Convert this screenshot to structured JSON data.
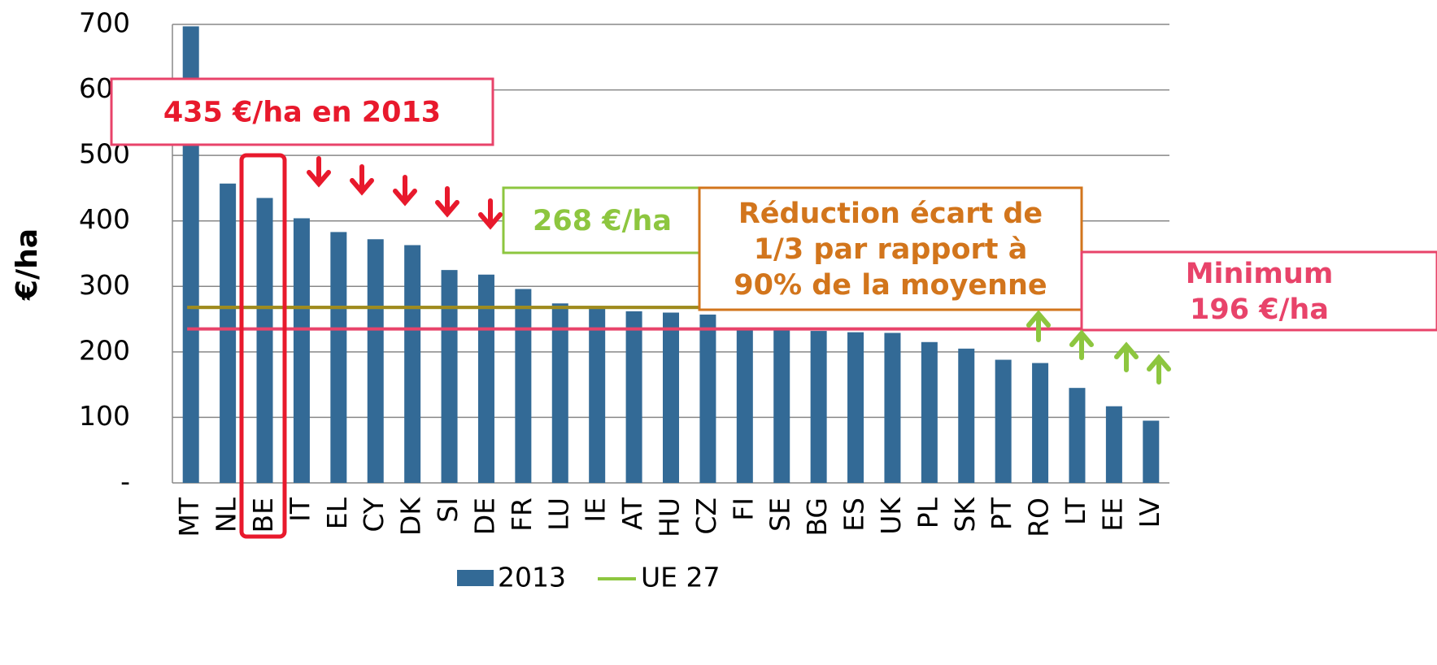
{
  "chart_data": {
    "type": "bar",
    "y_label": "€/ha",
    "categories": [
      "MT",
      "NL",
      "BE",
      "IT",
      "EL",
      "CY",
      "DK",
      "SI",
      "DE",
      "FR",
      "LU",
      "IE",
      "AT",
      "HU",
      "CZ",
      "FI",
      "SE",
      "BG",
      "ES",
      "UK",
      "PL",
      "SK",
      "PT",
      "RO",
      "LT",
      "EE",
      "LV"
    ],
    "series": [
      {
        "name": "2013",
        "type": "bar",
        "color": "#336a96",
        "values": [
          697,
          457,
          435,
          404,
          383,
          372,
          363,
          325,
          318,
          296,
          274,
          270,
          262,
          260,
          257,
          236,
          233,
          232,
          230,
          229,
          215,
          205,
          188,
          183,
          145,
          117,
          95
        ]
      },
      {
        "name": "UE 27",
        "type": "line",
        "color": "#8dc63f",
        "values": [
          268,
          268,
          268,
          268,
          268,
          268,
          268,
          268,
          268,
          268,
          268,
          268,
          268,
          268,
          268,
          268,
          268,
          268,
          268,
          268,
          268,
          268,
          268,
          268,
          268,
          268,
          268
        ]
      }
    ],
    "reference_lines": [
      {
        "value": 268,
        "color": "#a08a1e"
      },
      {
        "value": 235,
        "color": "#e8436a"
      }
    ],
    "ylim": [
      0,
      700
    ],
    "yticks": [
      {
        "value": 0,
        "label": "-"
      },
      100,
      200,
      300,
      400,
      500,
      600,
      700
    ],
    "grid": true,
    "legend": "bottom",
    "annotations": [
      {
        "lines": [
          "435 €/ha en 2013"
        ],
        "color": "#e8192c",
        "border": "#e8436a"
      },
      {
        "lines": [
          "268 €/ha"
        ],
        "color": "#8dc63f",
        "border": "#8dc63f"
      },
      {
        "lines": [
          "Réduction écart de",
          "1/3 par rapport à",
          "90% de la moyenne"
        ],
        "color": "#d2751c",
        "border": "#d2751c"
      },
      {
        "lines": [
          "Minimum",
          "196 €/ha"
        ],
        "color": "#e8436a",
        "border": "#e8436a"
      }
    ]
  }
}
